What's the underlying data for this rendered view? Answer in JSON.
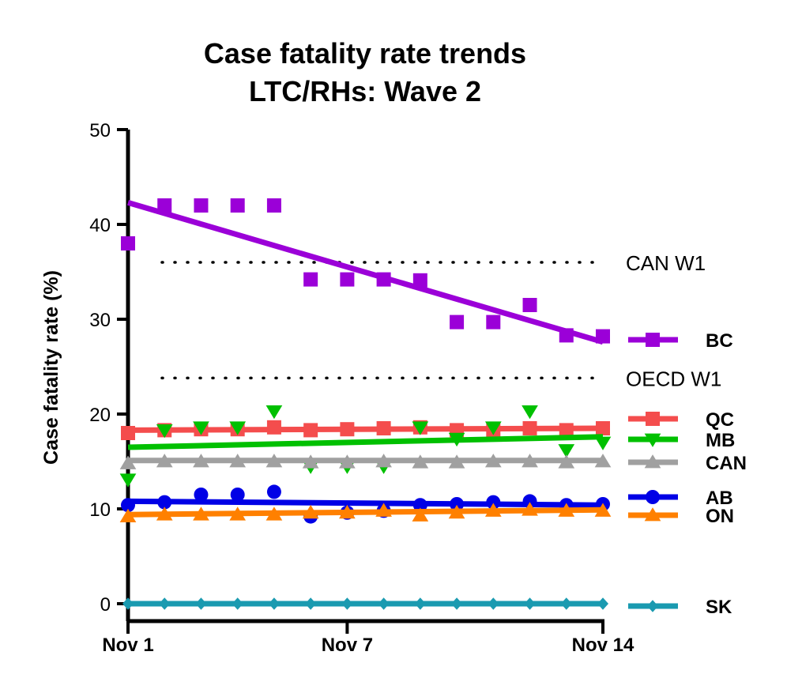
{
  "chart_data": {
    "type": "scatter",
    "title": [
      "Case fatality rate trends",
      "LTC/RHs: Wave 2"
    ],
    "ylabel": "Case fatality rate (%)",
    "xlabel": "",
    "ylim": [
      0,
      50
    ],
    "yticks": [
      "0",
      "10",
      "20",
      "30",
      "40",
      "50"
    ],
    "xlim": [
      1,
      14
    ],
    "xticks": [
      {
        "day": 1,
        "label": "Nov 1"
      },
      {
        "day": 7,
        "label": "Nov 7"
      },
      {
        "day": 14,
        "label": "Nov 14"
      }
    ],
    "x": [
      1,
      2,
      3,
      4,
      5,
      6,
      7,
      8,
      9,
      10,
      11,
      12,
      13,
      14
    ],
    "grid": false,
    "legend_position": "right",
    "reference_lines": [
      {
        "label": "CAN W1",
        "value": 36
      },
      {
        "label": "OECD W1",
        "value": 23.8
      }
    ],
    "series": [
      {
        "name": "BC",
        "color": "#9b00d8",
        "marker": "square",
        "values": [
          38,
          42,
          42,
          42,
          42,
          34.2,
          34.2,
          34.2,
          34.1,
          29.7,
          29.7,
          31.5,
          28.3,
          28.2
        ],
        "trend": [
          42.3,
          27.6
        ]
      },
      {
        "name": "QC",
        "color": "#f44d4d",
        "marker": "square",
        "values": [
          18,
          18.3,
          18.4,
          18.4,
          18.6,
          18.3,
          18.4,
          18.5,
          18.6,
          18.3,
          18.3,
          18.5,
          18.3,
          18.5
        ],
        "trend": [
          18.3,
          18.5
        ]
      },
      {
        "name": "MB",
        "color": "#00c000",
        "marker": "triangle-down",
        "values": [
          13.1,
          18.3,
          18.6,
          18.6,
          20.3,
          14.5,
          14.5,
          14.5,
          18.6,
          17.4,
          18.6,
          20.3,
          16.2,
          17
        ],
        "trend": [
          16.5,
          17.6
        ]
      },
      {
        "name": "CAN",
        "color": "#a0a0a0",
        "marker": "triangle-up",
        "values": [
          14.8,
          15,
          15,
          15,
          15,
          14.9,
          14.9,
          15,
          14.9,
          14.9,
          15,
          15,
          14.9,
          15
        ],
        "trend": [
          15.1,
          15.1
        ]
      },
      {
        "name": "AB",
        "color": "#0000e6",
        "marker": "circle",
        "values": [
          10.4,
          10.7,
          11.5,
          11.5,
          11.8,
          9.2,
          9.6,
          9.8,
          10.4,
          10.5,
          10.7,
          10.8,
          10.4,
          10.5
        ],
        "trend": [
          10.8,
          10.4
        ]
      },
      {
        "name": "ON",
        "color": "#ff8000",
        "marker": "triangle-up",
        "values": [
          9.2,
          9.4,
          9.4,
          9.4,
          9.4,
          9.6,
          9.6,
          9.8,
          9.3,
          9.6,
          9.8,
          9.9,
          9.8,
          9.8
        ],
        "trend": [
          9.4,
          9.9
        ]
      },
      {
        "name": "SK",
        "color": "#1a9ab0",
        "marker": "diamond",
        "values": [
          0,
          0,
          0,
          0,
          0,
          0,
          0,
          0,
          0,
          0,
          0,
          0,
          0,
          0
        ],
        "trend": [
          0,
          0
        ]
      }
    ]
  }
}
